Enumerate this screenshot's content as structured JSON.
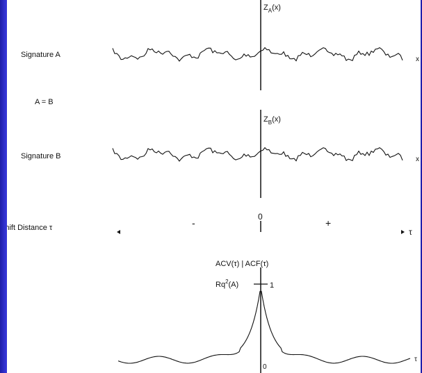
{
  "labels": {
    "signature_a": "Signature A",
    "signature_b": "Signature B",
    "equality": "A = B",
    "za_prefix": "Z",
    "za_sub": "A",
    "za_suffix": "(x)",
    "zb_prefix": "Z",
    "zb_sub": "B",
    "zb_suffix": "(x)",
    "shift_distance": "Shift Distance τ",
    "minus": "-",
    "plus": "+",
    "zero_top": "0",
    "tau": "τ",
    "acv_acf": "ACV(τ) | ACF(τ)",
    "rq_prefix": "Rq",
    "rq_sup": "2",
    "rq_suffix": "(A)",
    "one": "1",
    "zero_bottom": "0",
    "x_end_a": "x",
    "x_end_b": "x",
    "tau_end": "τ"
  },
  "colors": {
    "frame": "#3434d6",
    "panel": "#ffffff",
    "ink": "#111111"
  }
}
